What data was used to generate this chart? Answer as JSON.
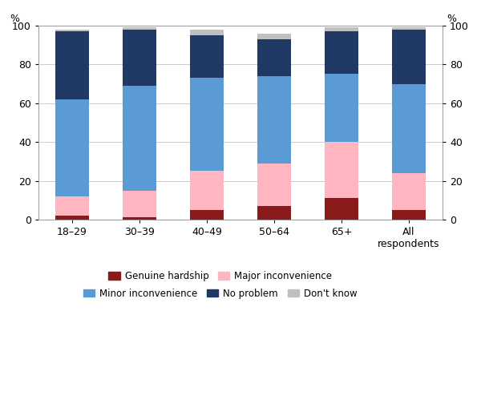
{
  "categories": [
    "18–29",
    "30–39",
    "40–49",
    "50–64",
    "65+",
    "All\nrespondents"
  ],
  "series": {
    "Genuine hardship": [
      2,
      1,
      5,
      7,
      11,
      5
    ],
    "Major inconvenience": [
      10,
      14,
      20,
      22,
      29,
      19
    ],
    "Minor inconvenience": [
      50,
      54,
      48,
      45,
      35,
      46
    ],
    "No problem": [
      35,
      29,
      22,
      19,
      22,
      28
    ],
    "Don't know": [
      1,
      1,
      3,
      3,
      2,
      1
    ]
  },
  "colors": {
    "Genuine hardship": "#8B1A1A",
    "Major inconvenience": "#FFB6C1",
    "Minor inconvenience": "#5B9BD5",
    "No problem": "#1F3864",
    "Don't know": "#BFBFBF"
  },
  "order": [
    "Genuine hardship",
    "Major inconvenience",
    "Minor inconvenience",
    "No problem",
    "Don't know"
  ],
  "ylim": [
    0,
    100
  ],
  "yticks": [
    0,
    20,
    40,
    60,
    80,
    100
  ],
  "bar_width": 0.5,
  "background_color": "#FFFFFF",
  "grid_color": "#CCCCCC",
  "legend_row1": [
    "Genuine hardship",
    "Major inconvenience"
  ],
  "legend_row2": [
    "Minor inconvenience",
    "No problem",
    "Don't know"
  ]
}
